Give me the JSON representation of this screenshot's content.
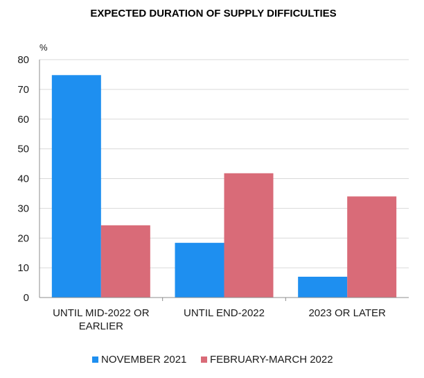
{
  "chart_data": {
    "type": "bar",
    "title": "EXPECTED DURATION OF SUPPLY DIFFICULTIES",
    "ylabel": "%",
    "ylim": [
      0,
      80
    ],
    "yticks": [
      "0",
      "10",
      "20",
      "30",
      "40",
      "50",
      "60",
      "70",
      "80"
    ],
    "categories": [
      [
        "UNTIL MID-2022 OR",
        "EARLIER"
      ],
      [
        "UNTIL END-2022"
      ],
      [
        "2023 OR LATER"
      ]
    ],
    "series": [
      {
        "name": "NOVEMBER 2021",
        "color": "#1e8ff0",
        "values": [
          74.8,
          18.4,
          7.0
        ]
      },
      {
        "name": "FEBRUARY-MARCH 2022",
        "color": "#d96b78",
        "values": [
          24.3,
          41.8,
          34.0
        ]
      }
    ],
    "grid": true,
    "legend_position": "bottom"
  }
}
